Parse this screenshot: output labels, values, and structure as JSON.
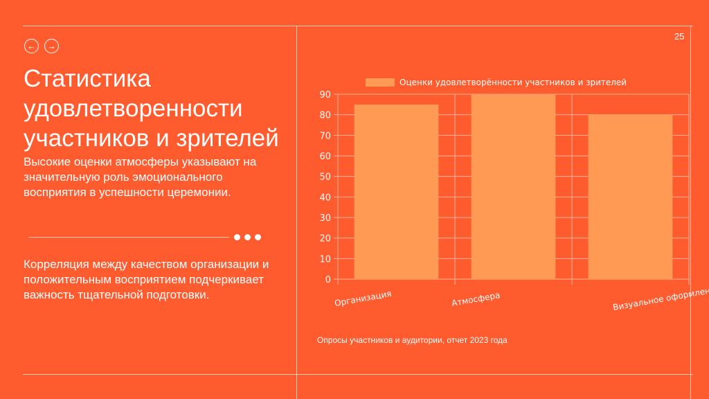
{
  "page_number": "25",
  "title": "Статистика удовлетворенности участников и зрителей",
  "subtitle": "Высокие оценки атмосферы указывают на значительную роль эмоционального восприятия в успешности церемонии.",
  "body_text": "Корреляция между качеством организации и положительным восприятием подчеркивает важность тщательной подготовки.",
  "source": "Опросы участников и аудитории, отчет 2023 года",
  "nav": {
    "prev": "←",
    "next": "→"
  },
  "colors": {
    "background": "#FE5B2F",
    "bar": "#FF9A55"
  },
  "chart_data": {
    "type": "bar",
    "categories": [
      "Организация",
      "Атмосфера",
      "Визуальное оформление"
    ],
    "series": [
      {
        "name": "Оценки удовлетворённости участников и зрителей",
        "values": [
          85,
          90,
          80
        ]
      }
    ],
    "yticks": [
      "0",
      "10",
      "20",
      "30",
      "40",
      "50",
      "60",
      "70",
      "80",
      "90"
    ],
    "ylim": [
      0,
      90
    ],
    "grid": true,
    "legend": "top-center",
    "title": "",
    "xlabel": "",
    "ylabel": ""
  }
}
